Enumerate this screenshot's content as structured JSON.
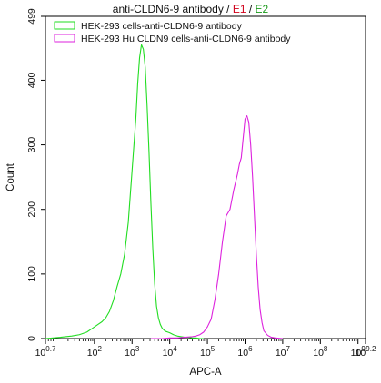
{
  "chart_data": {
    "type": "line",
    "title": {
      "main": "anti-CLDN6-9 antibody",
      "sep1": " / ",
      "e1": "E1",
      "sep2": " / ",
      "e2": "E2"
    },
    "title_colors": {
      "main": "#111111",
      "e1": "#d0021b",
      "e2": "#1a9a1a"
    },
    "xlabel": "APC-A",
    "ylabel": "Count",
    "xscale": "log10",
    "xlim": [
      0.7,
      9.2
    ],
    "ylim": [
      0,
      499
    ],
    "x_ticks": [
      {
        "exp": 0.7,
        "base": "10",
        "sup": "0.7"
      },
      {
        "exp": 2,
        "base": "10",
        "sup": "2"
      },
      {
        "exp": 3,
        "base": "10",
        "sup": "3"
      },
      {
        "exp": 4,
        "base": "10",
        "sup": "4"
      },
      {
        "exp": 5,
        "base": "10",
        "sup": "5"
      },
      {
        "exp": 6,
        "base": "10",
        "sup": "6"
      },
      {
        "exp": 7,
        "base": "10",
        "sup": "7"
      },
      {
        "exp": 8,
        "base": "10",
        "sup": "8"
      },
      {
        "exp": 9,
        "base": "10",
        "sup": "9"
      },
      {
        "exp": 9.2,
        "base": "10",
        "sup": "9.2"
      }
    ],
    "y_ticks": [
      0,
      100,
      200,
      300,
      400,
      499
    ],
    "grid": false,
    "legend_position": "top-left",
    "series": [
      {
        "name": "HEK-293 cells-anti-CLDN6-9 antibody",
        "color": "#22dd22",
        "log_x": [
          0.7,
          1.1,
          1.4,
          1.6,
          1.8,
          1.9,
          2.0,
          2.1,
          2.2,
          2.3,
          2.4,
          2.5,
          2.6,
          2.7,
          2.8,
          2.9,
          3.0,
          3.1,
          3.15,
          3.2,
          3.25,
          3.3,
          3.35,
          3.4,
          3.45,
          3.5,
          3.55,
          3.6,
          3.65,
          3.7,
          3.75,
          3.8,
          3.85,
          3.9,
          3.95,
          4.0,
          4.1,
          4.2,
          4.3,
          4.4,
          4.5,
          4.6,
          4.7,
          4.8,
          4.9
        ],
        "y": [
          0,
          2,
          4,
          6,
          10,
          14,
          18,
          22,
          26,
          32,
          42,
          58,
          80,
          100,
          130,
          180,
          260,
          340,
          395,
          435,
          455,
          448,
          420,
          360,
          290,
          210,
          140,
          85,
          50,
          32,
          22,
          16,
          13,
          11,
          10,
          9,
          6,
          4,
          3,
          2,
          2,
          1,
          1,
          0,
          0
        ]
      },
      {
        "name": "HEK-293 Hu CLDN9 cells-anti-CLDN6-9 antibody",
        "color": "#dd22dd",
        "log_x": [
          3.5,
          3.8,
          4.0,
          4.2,
          4.4,
          4.6,
          4.7,
          4.8,
          4.9,
          5.0,
          5.1,
          5.2,
          5.3,
          5.4,
          5.5,
          5.6,
          5.7,
          5.8,
          5.85,
          5.9,
          5.95,
          6.0,
          6.05,
          6.1,
          6.15,
          6.2,
          6.25,
          6.3,
          6.35,
          6.4,
          6.45,
          6.5,
          6.6,
          6.7,
          6.8,
          7.0
        ],
        "y": [
          0,
          0,
          1,
          1,
          2,
          3,
          4,
          6,
          10,
          18,
          30,
          60,
          100,
          150,
          190,
          200,
          230,
          255,
          270,
          280,
          310,
          340,
          345,
          335,
          300,
          250,
          190,
          130,
          80,
          45,
          25,
          12,
          5,
          2,
          1,
          0
        ]
      }
    ]
  }
}
